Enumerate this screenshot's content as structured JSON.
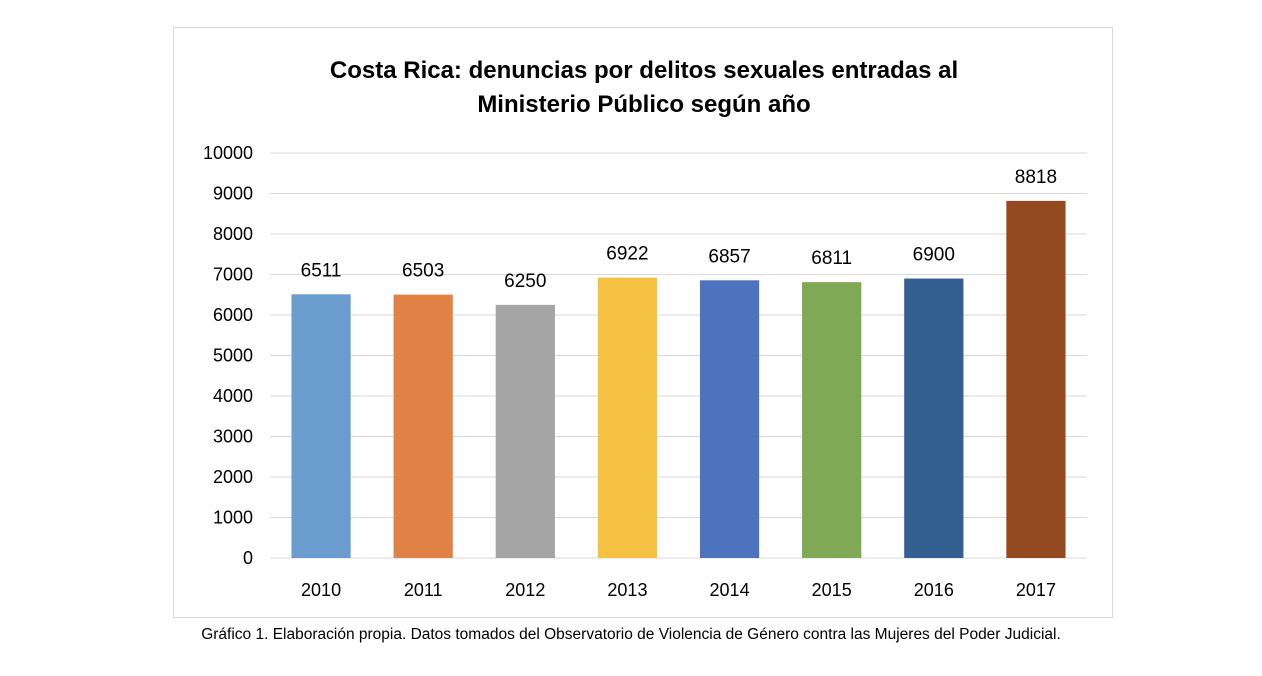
{
  "chart_data": {
    "type": "bar",
    "title_lines": [
      "Costa Rica: denuncias por delitos sexuales entradas al",
      "Ministerio Público según año"
    ],
    "categories": [
      "2010",
      "2011",
      "2012",
      "2013",
      "2014",
      "2015",
      "2016",
      "2017"
    ],
    "values": [
      6511,
      6503,
      6250,
      6922,
      6857,
      6811,
      6900,
      8818
    ],
    "data_labels": [
      "6511",
      "6503",
      "6250",
      "6922",
      "6857",
      "6811",
      "6900",
      "8818"
    ],
    "colors": [
      "#6a9ccf",
      "#e08245",
      "#a5a5a5",
      "#f5c142",
      "#4e73be",
      "#7fa955",
      "#335f91",
      "#934a20"
    ],
    "ylim": [
      0,
      10000
    ],
    "yticks": [
      0,
      1000,
      2000,
      3000,
      4000,
      5000,
      6000,
      7000,
      8000,
      9000,
      10000
    ],
    "ytick_labels": [
      "0",
      "1000",
      "2000",
      "3000",
      "4000",
      "5000",
      "6000",
      "7000",
      "8000",
      "9000",
      "10000"
    ],
    "grid": true,
    "gridline_color": "#d9d9d9",
    "legend": "none"
  },
  "caption": "Gráfico 1. Elaboración propia. Datos tomados del Observatorio de Violencia de Género contra las Mujeres del Poder Judicial."
}
